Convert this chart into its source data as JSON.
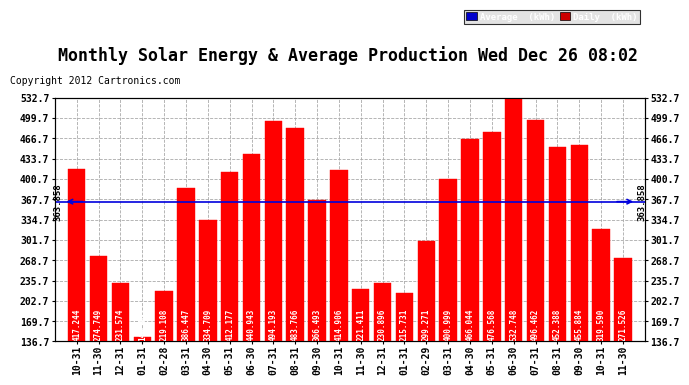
{
  "title": "Monthly Solar Energy & Average Production Wed Dec 26 08:02",
  "copyright": "Copyright 2012 Cartronics.com",
  "categories": [
    "10-31",
    "11-30",
    "12-31",
    "01-31",
    "02-28",
    "03-31",
    "04-30",
    "05-31",
    "06-30",
    "07-31",
    "08-31",
    "09-30",
    "10-31",
    "11-30",
    "12-31",
    "01-31",
    "02-29",
    "03-31",
    "04-30",
    "05-31",
    "06-30",
    "07-31",
    "08-31",
    "09-30",
    "10-31",
    "11-30"
  ],
  "values": [
    417.244,
    274.749,
    231.574,
    144.485,
    219.108,
    386.447,
    334.709,
    412.177,
    440.943,
    494.193,
    483.766,
    366.493,
    414.906,
    221.411,
    230.896,
    215.731,
    299.271,
    400.999,
    466.044,
    476.568,
    532.748,
    496.462,
    452.388,
    455.884,
    319.59,
    271.526
  ],
  "average": 363.858,
  "average_label": "363.858",
  "bar_color": "#FF0000",
  "bar_edge_color": "#FF0000",
  "average_line_color": "#0000DD",
  "background_color": "#FFFFFF",
  "plot_bg_color": "#FFFFFF",
  "grid_color": "#AAAAAA",
  "ylim_min": 136.7,
  "ylim_max": 532.7,
  "yticks": [
    136.7,
    169.7,
    202.7,
    235.7,
    268.7,
    301.7,
    334.7,
    367.7,
    400.7,
    433.7,
    466.7,
    499.7,
    532.7
  ],
  "title_fontsize": 12,
  "copyright_fontsize": 7,
  "tick_fontsize": 7,
  "value_fontsize": 5.5,
  "avg_label_fontsize": 6.5,
  "legend_avg_color": "#0000CC",
  "legend_daily_color": "#CC0000"
}
